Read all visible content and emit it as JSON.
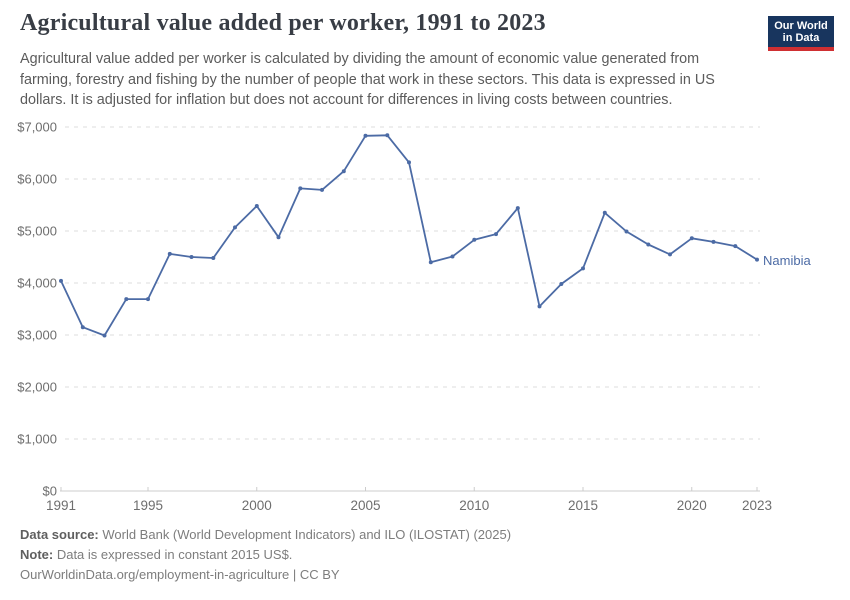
{
  "header": {
    "title": "Agricultural value added per worker, 1991 to 2023",
    "subtitle": "Agricultural value added per worker is calculated by dividing the amount of economic value generated from farming, forestry and fishing by the number of people that work in these sectors. This data is expressed in US dollars. It is adjusted for inflation but does not account for differences in living costs between countries.",
    "logo": {
      "line1": "Our World",
      "line2": "in Data",
      "bg_color": "#18355e",
      "stripe_color": "#cf2f32"
    }
  },
  "chart_data": {
    "type": "line",
    "title": "Agricultural value added per worker, 1991 to 2023",
    "unit": "constant 2015 US$",
    "xlim": [
      1991,
      2023
    ],
    "ylim": [
      0,
      7000
    ],
    "grid": "horizontal-dashed",
    "legend_position": "end-of-line-label",
    "x": [
      1991,
      1992,
      1993,
      1994,
      1995,
      1996,
      1997,
      1998,
      1999,
      2000,
      2001,
      2002,
      2003,
      2004,
      2005,
      2006,
      2007,
      2008,
      2009,
      2010,
      2011,
      2012,
      2013,
      2014,
      2015,
      2016,
      2017,
      2018,
      2019,
      2020,
      2021,
      2022,
      2023
    ],
    "series": [
      {
        "name": "Namibia",
        "color": "#4c6ba5",
        "values": [
          4040,
          3150,
          2990,
          3690,
          3690,
          4560,
          4500,
          4480,
          5070,
          5480,
          4880,
          5820,
          5790,
          6150,
          6830,
          6840,
          6320,
          4400,
          4510,
          4830,
          4940,
          5440,
          3550,
          3980,
          4280,
          5350,
          4990,
          4740,
          4550,
          4860,
          4790,
          4710,
          4450
        ]
      }
    ],
    "xticks": [
      {
        "value": 1991,
        "label": "1991"
      },
      {
        "value": 1995,
        "label": "1995"
      },
      {
        "value": 2000,
        "label": "2000"
      },
      {
        "value": 2005,
        "label": "2005"
      },
      {
        "value": 2010,
        "label": "2010"
      },
      {
        "value": 2015,
        "label": "2015"
      },
      {
        "value": 2020,
        "label": "2020"
      },
      {
        "value": 2023,
        "label": "2023"
      }
    ],
    "yticks": [
      {
        "value": 0,
        "label": "$0"
      },
      {
        "value": 1000,
        "label": "$1,000"
      },
      {
        "value": 2000,
        "label": "$2,000"
      },
      {
        "value": 3000,
        "label": "$3,000"
      },
      {
        "value": 4000,
        "label": "$4,000"
      },
      {
        "value": 5000,
        "label": "$5,000"
      },
      {
        "value": 6000,
        "label": "$6,000"
      },
      {
        "value": 7000,
        "label": "$7,000"
      }
    ],
    "colors": {
      "gridline": "#dedede",
      "axis": "#cccccc",
      "tick_label": "#6e6e6e"
    }
  },
  "footer": {
    "data_source_label": "Data source:",
    "data_source_text": " World Bank (World Development Indicators) and ILO (ILOSTAT) (2025)",
    "note_label": "Note:",
    "note_text": " Data is expressed in constant 2015 US$.",
    "citation": "OurWorldinData.org/employment-in-agriculture | CC BY"
  }
}
